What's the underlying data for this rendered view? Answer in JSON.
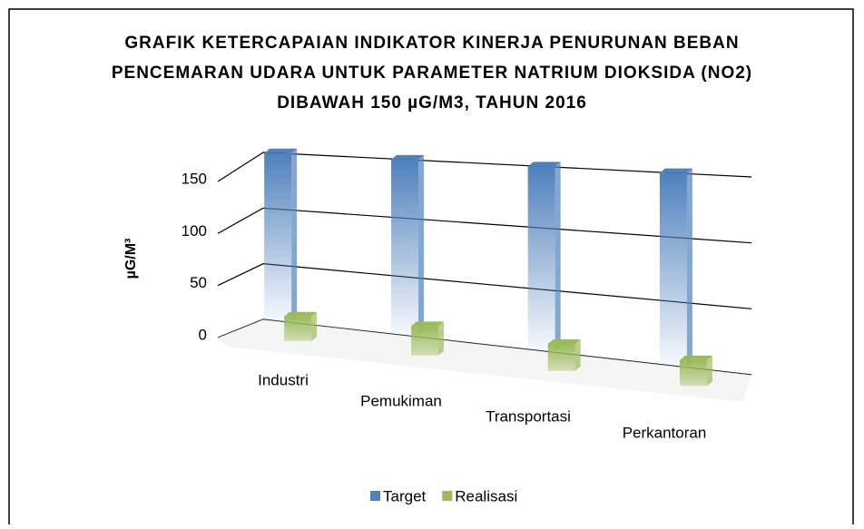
{
  "chart_data": {
    "type": "bar3d",
    "title": "GRAFIK KETERCAPAIAN INDIKATOR KINERJA PENURUNAN BEBAN PENCEMARAN UDARA UNTUK PARAMETER NATRIUM DIOKSIDA (NO2) DIBAWAH 150 µG/M3, TAHUN 2016",
    "y_label": "µG/M³",
    "categories": [
      "Industri",
      "Pemukiman",
      "Transportasi",
      "Perkantoran"
    ],
    "series": [
      {
        "name": "Target",
        "color": "#4f81bd",
        "values": [
          150,
          150,
          150,
          150
        ]
      },
      {
        "name": "Realisasi",
        "color": "#9bbb59",
        "values": [
          22,
          25,
          22,
          20
        ]
      }
    ],
    "ylim": [
      0,
      150
    ],
    "yticks": [
      0,
      50,
      100,
      150
    ],
    "grid": true
  }
}
